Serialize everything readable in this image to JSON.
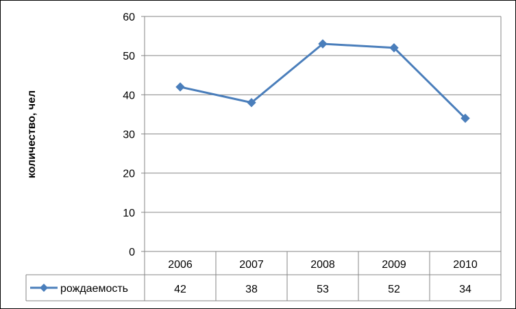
{
  "chart_data": {
    "type": "line",
    "ylabel": "количество, чел",
    "xlabel": "",
    "ylim": [
      0,
      60
    ],
    "yticks": [
      0,
      10,
      20,
      30,
      40,
      50,
      60
    ],
    "grid": true,
    "legend": "data-table-left",
    "categories": [
      "2006",
      "2007",
      "2008",
      "2009",
      "2010"
    ],
    "series": [
      {
        "name": "рождаемость",
        "values": [
          42,
          38,
          53,
          52,
          34
        ],
        "color": "#4a7ebb",
        "marker": "diamond"
      }
    ]
  }
}
